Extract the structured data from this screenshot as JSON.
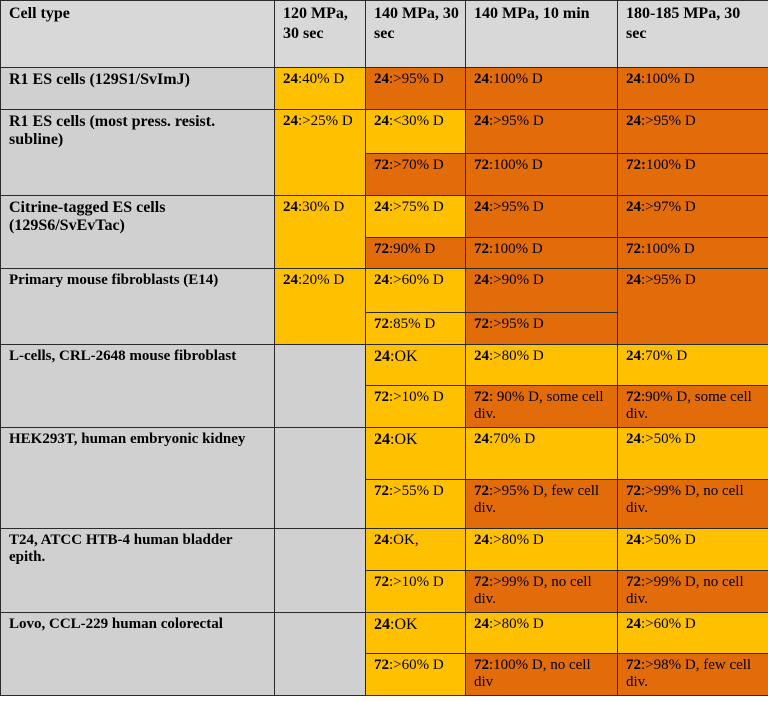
{
  "colors": {
    "header": "#d8d8d8",
    "celltype": "#d0d0d0",
    "moderate": "#ffc000",
    "severe": "#e26b0a"
  },
  "headers": [
    "Cell type",
    "120 MPa, 30 sec",
    "140 MPa, 30 sec",
    "140 MPa, 10 min",
    "180-185 MPa, 30 sec"
  ],
  "rows": [
    {
      "cell_type": "R1 ES cells (129S1/SvImJ)",
      "c120": {
        "t": "24",
        "v": ":40% D"
      },
      "c140_30s": [
        {
          "t": "24",
          "v": ":>95% D"
        }
      ],
      "c140_10m": [
        {
          "t": "24",
          "v": ":100% D"
        }
      ],
      "c180": [
        {
          "t": "24",
          "v": ":100% D"
        }
      ]
    },
    {
      "cell_type": "R1 ES cells (most press. resist. subline)",
      "c120": {
        "t": "24",
        "v": ":>25% D"
      },
      "c140_30s": [
        {
          "t": "24",
          "v": ":<30% D"
        },
        {
          "t": "72",
          "v": ":>70% D"
        }
      ],
      "c140_10m": [
        {
          "t": "24",
          "v": ":>95% D"
        },
        {
          "t": "72",
          "v": ":100% D"
        }
      ],
      "c180": [
        {
          "t": "24",
          "v": ":>95% D"
        },
        {
          "t": "72:",
          "v": "100% D"
        }
      ]
    },
    {
      "cell_type": "Citrine-tagged ES cells (129S6/SvEvTac)",
      "c120": {
        "t": "24",
        "v": ":30% D"
      },
      "c140_30s": [
        {
          "t": "24",
          "v": ":>75% D"
        },
        {
          "t": "72",
          "v": ":90% D"
        }
      ],
      "c140_10m": [
        {
          "t": "24",
          "v": ":>95% D"
        },
        {
          "t": "72",
          "v": ":100% D"
        }
      ],
      "c180": [
        {
          "t": "24",
          "v": ":>97% D"
        },
        {
          "t": "72",
          "v": ":100% D"
        }
      ]
    },
    {
      "cell_type": "Primary mouse fibroblasts (E14)",
      "c120": {
        "t": "24",
        "v": ":20% D"
      },
      "c140_30s": [
        {
          "t": "24",
          "v": ":>60% D"
        },
        {
          "t": "72",
          "v": ":85% D"
        }
      ],
      "c140_10m": [
        {
          "t": "24",
          "v": ":>90% D"
        },
        {
          "t": "72",
          "v": ":>95% D"
        }
      ],
      "c180": [
        {
          "t": "24",
          "v": ":>95% D"
        }
      ]
    },
    {
      "cell_type": "L-cells, CRL-2648 mouse fibroblast",
      "c140_30s": [
        {
          "t": "24",
          "v": ":OK"
        },
        {
          "t": "72",
          "v": ":>10% D"
        }
      ],
      "c140_10m": [
        {
          "t": "24",
          "v": ":>80% D"
        },
        {
          "t": "72",
          "v": ": 90% D, some cell div."
        }
      ],
      "c180": [
        {
          "t": "24",
          "v": ":70% D"
        },
        {
          "t": "72",
          "v": ":90% D, some cell div."
        }
      ]
    },
    {
      "cell_type": "HEK293T,  human embryonic kidney",
      "c140_30s": [
        {
          "t": "24",
          "v": ":OK"
        },
        {
          "t": "72",
          "v": ":>55% D"
        }
      ],
      "c140_10m": [
        {
          "t": "24",
          "v": ":70% D"
        },
        {
          "t": "72",
          "v": ":>95% D, few cell div."
        }
      ],
      "c180": [
        {
          "t": "24",
          "v": ":>50% D"
        },
        {
          "t": "72",
          "v": ":>99% D, no cell div."
        }
      ]
    },
    {
      "cell_type": "T24, ATCC HTB-4 human bladder epith.",
      "c140_30s": [
        {
          "t": "24",
          "v": ":OK,"
        },
        {
          "t": "72",
          "v": ":>10% D"
        }
      ],
      "c140_10m": [
        {
          "t": "24",
          "v": ":>80% D"
        },
        {
          "t": "72",
          "v": ":>99% D, no cell div."
        }
      ],
      "c180": [
        {
          "t": "24",
          "v": ":>50% D"
        },
        {
          "t": "72",
          "v": ":>99% D, no cell div."
        }
      ]
    },
    {
      "cell_type": "Lovo,  CCL-229 human colorectal",
      "c140_30s": [
        {
          "t": "24",
          "v": ":OK"
        },
        {
          "t": "72",
          "v": ":>60% D"
        }
      ],
      "c140_10m": [
        {
          "t": "24",
          "v": ":>80% D"
        },
        {
          "t": "72",
          "v": ":100% D, no cell div"
        }
      ],
      "c180": [
        {
          "t": "24",
          "v": ":>60% D"
        },
        {
          "t": "72",
          "v": ":>98% D, few cell div."
        }
      ]
    }
  ]
}
